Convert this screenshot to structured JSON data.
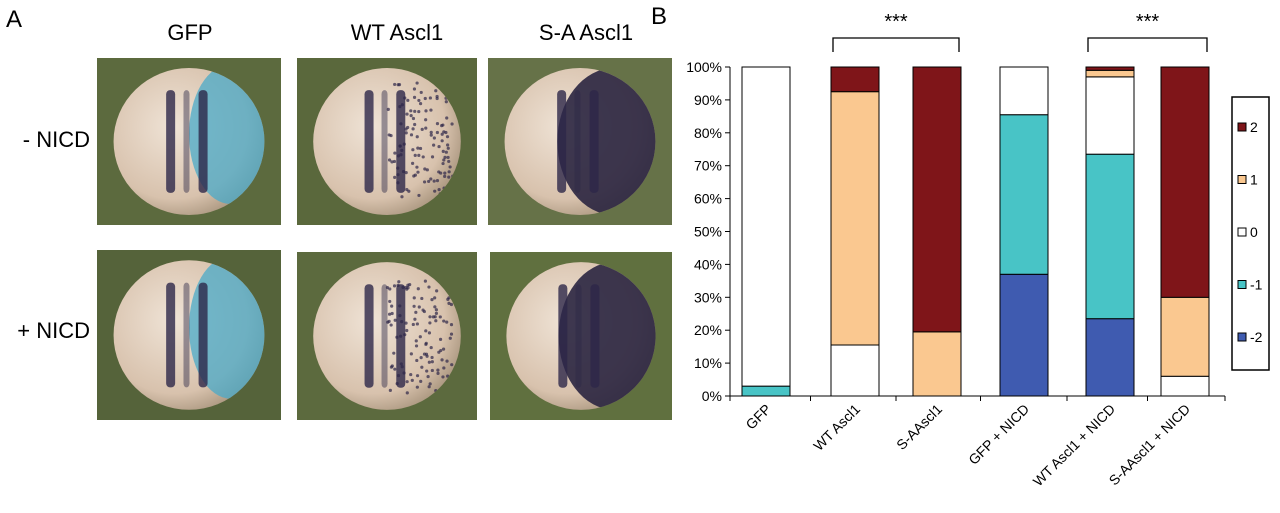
{
  "panel_a": {
    "label": "A",
    "columns": [
      "GFP",
      "WT Ascl1",
      "S-A Ascl1"
    ],
    "rows": [
      "- NICD",
      "+ NICD"
    ],
    "tiles": [
      {
        "name": "embryo-gfp-minus-nicd",
        "bg": "#5c6a3e",
        "stain": "gfp-diffuse"
      },
      {
        "name": "embryo-wt-minus-nicd",
        "bg": "#5a683c",
        "stain": "wt-dots"
      },
      {
        "name": "embryo-sa-minus-nicd",
        "bg": "#667248",
        "stain": "sa-dense"
      },
      {
        "name": "embryo-gfp-plus-nicd",
        "bg": "#55633a",
        "stain": "gfp-diffuse"
      },
      {
        "name": "embryo-wt-plus-nicd",
        "bg": "#5c6a3e",
        "stain": "wt-dots"
      },
      {
        "name": "embryo-sa-plus-nicd",
        "bg": "#60703f",
        "stain": "sa-dense"
      }
    ]
  },
  "chart_data": {
    "panel_label": "B",
    "type": "bar",
    "stacked": true,
    "categories": [
      "GFP",
      "WT Ascl1",
      "S-AAscl1",
      "GFP + NICD",
      "WT  Ascl1 + NICD",
      "S-AAscl1 + NICD"
    ],
    "y_ticks": [
      "0%",
      "10%",
      "20%",
      "30%",
      "40%",
      "50%",
      "60%",
      "70%",
      "80%",
      "90%",
      "100%"
    ],
    "ylim": [
      0,
      100
    ],
    "series": [
      {
        "name": "-2",
        "color": "#3f5bb0",
        "values": [
          0,
          0,
          0,
          37,
          23.5,
          0
        ]
      },
      {
        "name": "-1",
        "color": "#48c4c6",
        "values": [
          3,
          0,
          0,
          48.5,
          50,
          0
        ]
      },
      {
        "name": "0",
        "color": "#ffffff",
        "values": [
          97,
          15.5,
          0,
          14.5,
          23.5,
          6
        ]
      },
      {
        "name": "1",
        "color": "#fac890",
        "values": [
          0,
          77,
          19.5,
          0,
          2,
          24
        ]
      },
      {
        "name": "2",
        "color": "#7f1519",
        "values": [
          0,
          7.5,
          80.5,
          0,
          1,
          70
        ]
      }
    ],
    "legend_order": [
      "2",
      "1",
      "0",
      "-1",
      "-2"
    ],
    "legend_position": "right",
    "significance": [
      {
        "label": "***",
        "from": 1,
        "to": 2
      },
      {
        "label": "***",
        "from": 4,
        "to": 5
      }
    ]
  }
}
